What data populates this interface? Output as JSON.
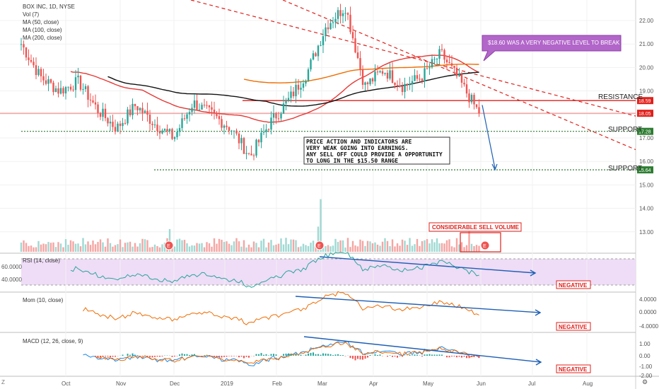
{
  "chart_data": {
    "type": "candlestick",
    "symbol": "BOX INC, 1D, NYSE",
    "legend": [
      "BOX INC, 1D, NYSE",
      "Vol (7)",
      "MA (50, close)",
      "MA (100, close)",
      "MA (200, close)"
    ],
    "x_ticks": [
      "Oct",
      "Nov",
      "Dec",
      "2019",
      "Feb",
      "Mar",
      "Apr",
      "May",
      "Jun",
      "Jul",
      "Aug"
    ],
    "price_axis": {
      "ticks": [
        "22.00",
        "21.00",
        "20.00",
        "19.00",
        "18.00",
        "17.00",
        "16.00",
        "15.00",
        "14.00",
        "13.00"
      ],
      "ylim": [
        12.5,
        22.7
      ]
    },
    "rsi_axis": {
      "ticks": [
        "60.0000",
        "40.0000"
      ]
    },
    "mom_axis": {
      "ticks": [
        "4.0000",
        "0.0000",
        "-4.0000"
      ]
    },
    "macd_axis": {
      "ticks": [
        "1.00",
        "0.00",
        "-1.00",
        "-2.00"
      ]
    },
    "price_tags": [
      {
        "value": "18.59",
        "color": "#e0201b"
      },
      {
        "value": "18.05",
        "color": "#e0201b"
      },
      {
        "value": "17.28",
        "color": "#2e7d32"
      },
      {
        "value": "15.64",
        "color": "#2e7d32"
      }
    ],
    "levels": {
      "resistance": 18.59,
      "support_1": 17.28,
      "support_2": 15.64
    },
    "close_path": [
      [
        "Oct",
        21.0
      ],
      [
        "Oct",
        19.6
      ],
      [
        "Oct",
        19.0
      ],
      [
        "Oct",
        19.4
      ],
      [
        "Oct",
        18.2
      ],
      [
        "Nov",
        17.4
      ],
      [
        "Nov",
        18.4
      ],
      [
        "Nov",
        17.6
      ],
      [
        "Nov",
        17.0
      ],
      [
        "Dec",
        18.5
      ],
      [
        "Dec",
        18.0
      ],
      [
        "Dec",
        17.4
      ],
      [
        "2019",
        16.2
      ],
      [
        "2019",
        17.6
      ],
      [
        "2019",
        18.6
      ],
      [
        "Feb",
        19.8
      ],
      [
        "Feb",
        21.8
      ],
      [
        "Feb",
        22.6
      ],
      [
        "Mar",
        19.2
      ],
      [
        "Mar",
        19.9
      ],
      [
        "Apr",
        19.2
      ],
      [
        "Apr",
        19.6
      ],
      [
        "May",
        20.6
      ],
      [
        "May",
        19.4
      ],
      [
        "Jun",
        18.05
      ]
    ]
  },
  "labels": {
    "resistance": "RESISTANCE",
    "support_a": "SUPPORT",
    "support_b": "SUPPORT",
    "callout": "$18.60 WAS A VERY NEGATIVE LEVEL TO BREAK",
    "note": [
      "PRICE ACTION AND INDICATORS ARE",
      "VERY WEAK GOING INTO EARNINGS.",
      "ANY SELL OFF COULD PROVIDE A OPPORTUNITY",
      "TO LONG IN THE $15.50 RANGE"
    ],
    "sell_volume": "CONSIDERABLE SELL VOLUME",
    "rsi_title": "RSI (14, close)",
    "mom_title": "Mom (10, close)",
    "macd_title": "MACD (12, 26, close, 9)",
    "negative_1": "NEGATIVE",
    "negative_2": "NEGATIVE",
    "negative_3": "NEGATIVE",
    "earnings_marker": "E",
    "zoom_marker": "Z"
  },
  "colors": {
    "up": "#26a69a",
    "down": "#ef5350",
    "ma50": "#e53935",
    "ma100": "#111111",
    "ma200": "#ef6c00",
    "rsi": "#26a69a",
    "mom": "#ef6c00",
    "macd": "#1e88e5",
    "signal": "#ef6c00",
    "trend_arrow": "#1e5fb4",
    "callout_bg": "#b266c9"
  }
}
